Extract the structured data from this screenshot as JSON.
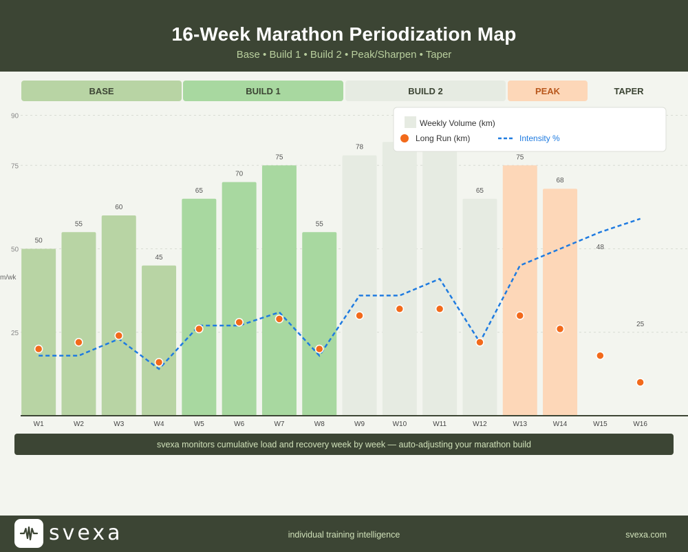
{
  "header": {
    "title": "16-Week Marathon Periodization Map",
    "subtitle": "Base • Build 1 • Build 2 • Peak/Sharpen • Taper"
  },
  "phases": [
    {
      "label": "BASE",
      "bg": "#b8d4a4",
      "color": "#3c4534"
    },
    {
      "label": "BUILD 1",
      "bg": "#a8d8a0",
      "color": "#3c4534"
    },
    {
      "label": "BUILD 2",
      "bg": "#e6ebe2",
      "color": "#3c4534"
    },
    {
      "label": "PEAK",
      "bg": "#fdd7b8",
      "color": "#b8571c"
    },
    {
      "label": "TAPER",
      "bg": "transparent",
      "color": "#3c4534"
    }
  ],
  "chart_data": {
    "type": "bar",
    "categories": [
      "W1",
      "W2",
      "W3",
      "W4",
      "W5",
      "W6",
      "W7",
      "W8",
      "W9",
      "W10",
      "W11",
      "W12",
      "W13",
      "W14",
      "W15",
      "W16"
    ],
    "y_ticks": [
      "25",
      "50",
      "75",
      "90"
    ],
    "ylabel": "m/wk",
    "ylim": [
      0,
      90
    ],
    "series": [
      {
        "name": "Weekly Volume (km)",
        "type": "bar",
        "values": [
          50,
          55,
          60,
          45,
          65,
          70,
          75,
          55,
          78,
          82,
          82,
          65,
          75,
          68,
          48,
          25
        ],
        "labels": [
          "50",
          "55",
          "60",
          "45",
          "65",
          "70",
          "75",
          "55",
          "78",
          "",
          "",
          "65",
          "75",
          "68",
          "48",
          "25"
        ]
      },
      {
        "name": "Long Run (km)",
        "type": "scatter",
        "values": [
          20,
          22,
          24,
          16,
          26,
          28,
          29,
          20,
          30,
          32,
          32,
          22,
          30,
          26,
          18,
          10
        ]
      },
      {
        "name": "Intensity %",
        "type": "line",
        "values": [
          18,
          18,
          23,
          14,
          27,
          27,
          31,
          18,
          36,
          36,
          41,
          22,
          45,
          50,
          55,
          59
        ]
      }
    ],
    "bar_colors": [
      "#b8d4a4",
      "#b8d4a4",
      "#b8d4a4",
      "#b8d4a4",
      "#a8d8a0",
      "#a8d8a0",
      "#a8d8a0",
      "#a8d8a0",
      "#e6ebe2",
      "#e6ebe2",
      "#e6ebe2",
      "#e6ebe2",
      "#fdd7b8",
      "#fdd7b8",
      "none",
      "none"
    ],
    "colors": {
      "long_run": "#f26a1b",
      "intensity": "#1f7be0",
      "legend_volume": "#e6ebe2"
    },
    "legend_position": "top-right",
    "grid": true
  },
  "banner": "svexa monitors cumulative load and recovery week by week — auto-adjusting your marathon build",
  "footer": {
    "brand": "svexa",
    "logo_icon": "waveform-icon",
    "tagline": "individual training intelligence",
    "site": "svexa.com"
  }
}
